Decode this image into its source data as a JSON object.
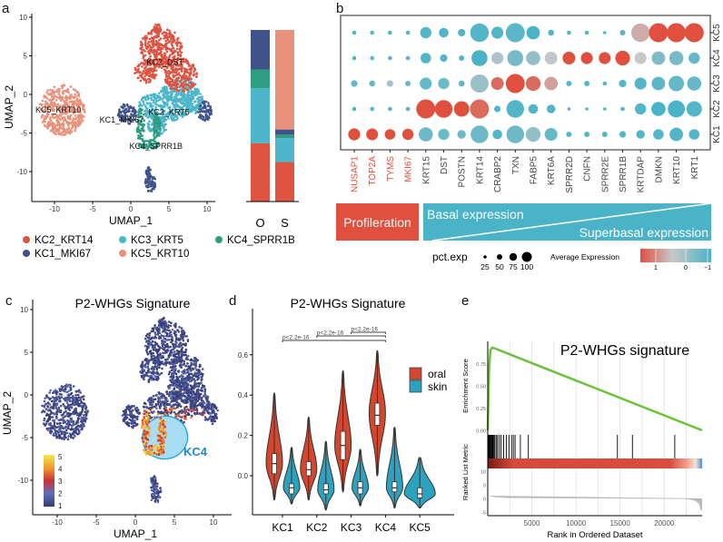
{
  "panel_labels": {
    "a": "a",
    "b": "b",
    "c": "c",
    "d": "d",
    "e": "e"
  },
  "chart_data": [
    {
      "type": "scatter",
      "xlabel": "UMAP_1",
      "ylabel": "UMAP_2",
      "x_ticks": [
        "-10",
        "-5",
        "0",
        "5",
        "10"
      ],
      "x_tick_values": [
        -10,
        -5,
        0,
        5,
        10
      ],
      "y_ticks": [
        "-10",
        "-5",
        "0",
        "5",
        "10"
      ],
      "y_tick_values": [
        -10,
        -5,
        0,
        5,
        10
      ],
      "clusters": [
        {
          "name": "KC5_KRT10",
          "color": "#E8917B",
          "blobs": [
            [
              -9,
              -2,
              3,
              3.3
            ]
          ]
        },
        {
          "name": "KC3_KRT5",
          "color": "#4DB6CB",
          "blobs": [
            [
              4.5,
              -1.5,
              3.5,
              2
            ],
            [
              6.5,
              0.5,
              2.5,
              1.5
            ],
            [
              3.5,
              -4,
              1.3,
              1.2
            ],
            [
              8.3,
              -1,
              1.2,
              1.5
            ]
          ]
        },
        {
          "name": "KC2_KRT14",
          "color": "#DF5341",
          "blobs": [
            [
              4,
              6,
              2.8,
              2.6
            ],
            [
              2,
              3,
              1.5,
              1.5
            ],
            [
              6.5,
              2.5,
              2.2,
              2.2
            ],
            [
              3.5,
              8.5,
              0.5,
              0.6
            ]
          ]
        },
        {
          "name": "KC4_SPRR1B",
          "color": "#2E9E82",
          "blobs": [
            [
              1.3,
              -4,
              0.5,
              2.2
            ],
            [
              3.4,
              -4.5,
              0.5,
              2.2
            ],
            [
              2.4,
              -6.5,
              1.4,
              0.6
            ]
          ]
        },
        {
          "name": "KC1_MKI67",
          "color": "#3F5289",
          "blobs": [
            [
              -0.5,
              -2.5,
              1.2,
              1.4
            ],
            [
              9.7,
              -2.2,
              0.9,
              1.3
            ],
            [
              2.6,
              -11.5,
              0.7,
              1.2
            ],
            [
              2.3,
              -10,
              0.3,
              0.6
            ]
          ]
        }
      ],
      "annotations": [
        {
          "text": "KC2_DST",
          "x": 4.5,
          "y": 4.2
        },
        {
          "text": "KC5_KRT10",
          "x": -9.5,
          "y": -2
        },
        {
          "text": "KC3_KRT5",
          "x": 5,
          "y": -2.3
        },
        {
          "text": "KC1_MKI67",
          "x": -1.2,
          "y": -3.3
        },
        {
          "text": "KC4_SPRR1B",
          "x": 3.3,
          "y": -6.7
        }
      ],
      "legend": [
        {
          "name": "KC2_KRT14",
          "color": "#DF5341"
        },
        {
          "name": "KC3_KRT5",
          "color": "#4DB6CB"
        },
        {
          "name": "KC4_SPRR1B",
          "color": "#2E9E82"
        },
        {
          "name": "KC1_MKI67",
          "color": "#3F5289"
        },
        {
          "name": "KC5_KRT10",
          "color": "#E8917B"
        }
      ],
      "legend_placement": "bottom"
    },
    {
      "type": "bar",
      "stacked": true,
      "categories": [
        "O",
        "S"
      ],
      "unit": "percent",
      "series": [
        {
          "name": "KC2_KRT14",
          "color": "#DF5341",
          "values": [
            34,
            23
          ]
        },
        {
          "name": "KC3_KRT5",
          "color": "#4DB6CB",
          "values": [
            32,
            14
          ]
        },
        {
          "name": "KC4_SPRR1B",
          "color": "#2E9E82",
          "values": [
            11,
            2
          ]
        },
        {
          "name": "KC1_MKI67",
          "color": "#3F5289",
          "values": [
            23,
            3
          ]
        },
        {
          "name": "KC5_KRT10",
          "color": "#E8917B",
          "values": [
            0,
            58
          ]
        }
      ]
    },
    {
      "type": "scatter",
      "subtype": "dotplot",
      "genes": [
        "NUSAP1",
        "TOP2A",
        "TYMS",
        "MKI67",
        "KRT15",
        "DST",
        "POSTN",
        "KRT14",
        "CRABP2",
        "TXN",
        "FABP5",
        "KRT6A",
        "SPRR2D",
        "CNFN",
        "SPRR2E",
        "SPRR1B",
        "KRTDAP",
        "DMKN",
        "KRT10",
        "KRT1"
      ],
      "highlight_genes_color": "#E0503F",
      "highlight_genes": [
        "NUSAP1",
        "TOP2A",
        "TYMS",
        "MKI67"
      ],
      "clusters": [
        "KC1",
        "KC2",
        "KC3",
        "KC4",
        "KC5"
      ],
      "pct_exp": [
        [
          40,
          38,
          30,
          35,
          55,
          35,
          20,
          85,
          25,
          85,
          60,
          45,
          8,
          8,
          8,
          12,
          20,
          30,
          50,
          30
        ],
        [
          5,
          5,
          5,
          5,
          100,
          85,
          65,
          100,
          12,
          85,
          25,
          20,
          3,
          3,
          3,
          5,
          35,
          55,
          80,
          65
        ],
        [
          12,
          10,
          12,
          8,
          40,
          35,
          10,
          90,
          45,
          100,
          60,
          50,
          8,
          8,
          5,
          15,
          40,
          50,
          65,
          55
        ],
        [
          5,
          5,
          5,
          5,
          30,
          15,
          8,
          70,
          40,
          70,
          55,
          45,
          45,
          40,
          40,
          60,
          40,
          50,
          55,
          35
        ],
        [
          5,
          5,
          5,
          5,
          35,
          25,
          15,
          95,
          40,
          100,
          50,
          10,
          5,
          5,
          3,
          8,
          95,
          100,
          100,
          100
        ]
      ],
      "avg_exp": [
        [
          1.3,
          1.3,
          1.2,
          1.3,
          -0.7,
          -0.7,
          -0.7,
          -0.7,
          -1,
          -0.7,
          -0.3,
          -0.8,
          -1,
          -1,
          -1,
          -1,
          -1,
          -1,
          -1,
          -1
        ],
        [
          -1,
          -1,
          -1,
          -1,
          1.3,
          1.3,
          1.3,
          1.0,
          -1,
          -1,
          -1,
          -1,
          -1,
          -1,
          -1,
          -1,
          -1,
          -1.1,
          -1.1,
          -1
        ],
        [
          -0.8,
          -0.8,
          -0.1,
          -0.8,
          -0.8,
          -0.7,
          -0.9,
          -0.2,
          1.0,
          1.3,
          1.0,
          0.6,
          -1,
          -1,
          -1,
          -1,
          -1,
          -0.9,
          -0.8,
          -0.8
        ],
        [
          -1,
          -1,
          -1,
          -1,
          -1,
          -1,
          -1,
          -1.1,
          0,
          -0.6,
          -0.3,
          0.2,
          1.3,
          1.3,
          1.3,
          1.3,
          0.3,
          -0.5,
          -0.6,
          -0.8
        ],
        [
          -1,
          -1,
          -1,
          -1,
          -1,
          -1,
          -1,
          -1,
          -1,
          -0.9,
          -1.2,
          -1,
          -1,
          -1,
          -1,
          -1,
          0.5,
          1.2,
          1.2,
          1.2
        ]
      ],
      "groups": {
        "proliferation": "Profileration",
        "basal": "Basal expression",
        "superbasal": "Superbasal expression"
      },
      "size_legend": {
        "title": "pct.exp",
        "values": [
          "25",
          "50",
          "75",
          "100"
        ]
      },
      "color_legend": {
        "title": "Average Expression",
        "ticks": [
          "1",
          "0",
          "−1"
        ],
        "high": "#E0503F",
        "mid": "#C8C8C8",
        "low": "#4AB3C8"
      }
    },
    {
      "type": "scatter",
      "subtype": "feature-plot",
      "title": "P2-WHGs Signature",
      "xlabel": "UMAP_1",
      "ylabel": "UMAP_2",
      "x_ticks": [
        "-10",
        "-5",
        "0",
        "5",
        "10"
      ],
      "x_tick_values": [
        -10,
        -5,
        0,
        5,
        10
      ],
      "y_ticks": [
        "-10",
        "-5",
        "0",
        "5",
        "10"
      ],
      "y_tick_values": [
        -10,
        -5,
        0,
        5,
        10
      ],
      "colorbar": {
        "ticks": [
          "5",
          "4",
          "3",
          "2",
          "1"
        ],
        "range": [
          1,
          5
        ]
      },
      "highlight": {
        "label": "KC4",
        "color": "#1E8AD0",
        "center": [
          3.8,
          -5
        ],
        "radii": [
          2.9,
          2.5
        ]
      }
    },
    {
      "type": "violin",
      "title": "P2-WHGs Signature",
      "categories": [
        "KC1",
        "KC2",
        "KC3",
        "KC4",
        "KC5"
      ],
      "y_ticks": [
        "0.0",
        "0.2",
        "0.4",
        "0.6"
      ],
      "y_tick_values": [
        0,
        0.2,
        0.4,
        0.6
      ],
      "ylim": [
        -0.2,
        0.75
      ],
      "legend": [
        {
          "name": "oral",
          "color": "#D4472F"
        },
        {
          "name": "skin",
          "color": "#2BA3BF"
        }
      ],
      "legend_placement": "right",
      "series": [
        {
          "name": "oral",
          "stats": [
            {
              "min": -0.12,
              "max": 0.41,
              "q1": 0.01,
              "median": 0.06,
              "q3": 0.11,
              "mode": 0.06
            },
            {
              "min": -0.12,
              "max": 0.29,
              "q1": 0.0,
              "median": 0.03,
              "q3": 0.07,
              "mode": 0.03
            },
            {
              "min": -0.08,
              "max": 0.52,
              "q1": 0.08,
              "median": 0.15,
              "q3": 0.22,
              "mode": 0.15
            },
            {
              "min": 0.0,
              "max": 0.62,
              "q1": 0.25,
              "median": 0.3,
              "q3": 0.36,
              "mode": 0.31
            },
            null
          ]
        },
        {
          "name": "skin",
          "stats": [
            {
              "min": -0.14,
              "max": 0.14,
              "q1": -0.09,
              "median": -0.06,
              "q3": -0.04,
              "mode": -0.06
            },
            {
              "min": -0.17,
              "max": 0.17,
              "q1": -0.09,
              "median": -0.07,
              "q3": -0.04,
              "mode": -0.07
            },
            {
              "min": -0.15,
              "max": 0.13,
              "q1": -0.09,
              "median": -0.06,
              "q3": -0.03,
              "mode": -0.06
            },
            {
              "min": -0.16,
              "max": 0.24,
              "q1": -0.08,
              "median": -0.06,
              "q3": -0.03,
              "mode": -0.06
            },
            {
              "min": -0.16,
              "max": 0.09,
              "q1": -0.11,
              "median": -0.09,
              "q3": -0.06,
              "mode": -0.09
            }
          ]
        }
      ],
      "comparisons": [
        {
          "from": "KC1",
          "to": "KC4",
          "label": "p<2.2e-16"
        },
        {
          "from": "KC2",
          "to": "KC4",
          "label": "p<2.2e-16"
        },
        {
          "from": "KC3",
          "to": "KC4",
          "label": "p<2.2e-16"
        }
      ]
    },
    {
      "type": "line",
      "subtype": "gsea",
      "title": "P2-WHGs signature",
      "xlabel": "Rank in Ordered Dataset",
      "ylabel_top": "Enrichment Score",
      "ylabel_bottom": "Ranked List Metric",
      "x_ticks": [
        "5000",
        "10000",
        "15000",
        "20000"
      ],
      "x_tick_values": [
        5000,
        10000,
        15000,
        20000
      ],
      "xlim": [
        0,
        24300
      ],
      "es_ticks": [
        "0.00",
        "0.25",
        "0.50",
        "0.75"
      ],
      "es_tick_values": [
        0,
        0.25,
        0.5,
        0.75
      ],
      "metric_ticks": [
        "10",
        "5",
        "0",
        "-5"
      ],
      "metric_tick_values": [
        10,
        5,
        0,
        -5
      ],
      "es_curve": {
        "x": [
          0,
          150,
          300,
          500,
          800,
          24300
        ],
        "y": [
          0,
          0.7,
          0.9,
          0.93,
          0.92,
          0.0
        ],
        "color": "#6CC13A"
      },
      "hits": [
        50,
        120,
        200,
        280,
        350,
        430,
        520,
        600,
        700,
        800,
        950,
        1100,
        1300,
        1500,
        1800,
        2100,
        2400,
        2700,
        2900,
        3100,
        3700,
        4600,
        14700,
        16400,
        21200
      ]
    }
  ]
}
